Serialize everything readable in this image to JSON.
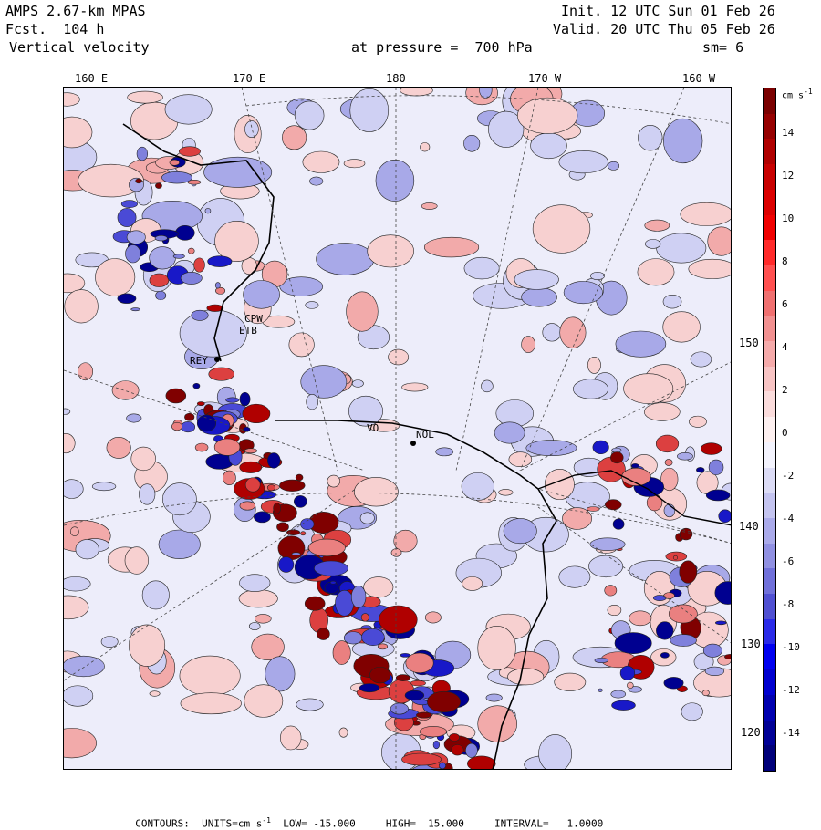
{
  "header": {
    "model": "AMPS 2.67-km MPAS",
    "forecast": "Fcst.  104 h",
    "field": "Vertical velocity",
    "init": "Init. 12 UTC Sun 01 Feb 26",
    "valid": "Valid. 20 UTC Thu 05 Feb 26",
    "level": "at pressure =  700 hPa",
    "smoothing": "sm= 6"
  },
  "longitude_labels": [
    "160 E",
    "170 E",
    "180",
    "170 W",
    "160 W"
  ],
  "latitude_labels": [
    "150 W",
    "140 W",
    "130 W",
    "120 W"
  ],
  "colorbar": {
    "unit_text": "cm s",
    "unit_exp": "-1",
    "tick_labels": [
      "14",
      "12",
      "10",
      "8",
      "6",
      "4",
      "2",
      "0",
      "-2",
      "-4",
      "-6",
      "-8",
      "-10",
      "-12",
      "-14"
    ],
    "colors": [
      "#7a0000",
      "#960000",
      "#b00000",
      "#c80000",
      "#dc0000",
      "#f00000",
      "#ff2a2a",
      "#ff5050",
      "#f07070",
      "#f29090",
      "#f5aaaa",
      "#f8c4c4",
      "#fbdcdc",
      "#fdf0f0",
      "#f3f3fd",
      "#dcdcf6",
      "#c4c4f0",
      "#aaaaea",
      "#9090e2",
      "#7070da",
      "#5050d2",
      "#2a2ae8",
      "#0000f0",
      "#0000d0",
      "#0000b0",
      "#000096",
      "#00007a"
    ]
  },
  "stations": [
    "CPW",
    "ETB",
    "REY",
    "NOL",
    "VO"
  ],
  "footer": {
    "contours": "CONTOURS:  UNITS=cm s",
    "units_exp": "-1",
    "low": "LOW= -15.000",
    "high": "HIGH=  15.000",
    "interval": "INTERVAL=   1.0000"
  },
  "colors": {
    "positive": "#dc2020",
    "negative": "#2a2ae8",
    "zero": "#f4f4f4"
  }
}
